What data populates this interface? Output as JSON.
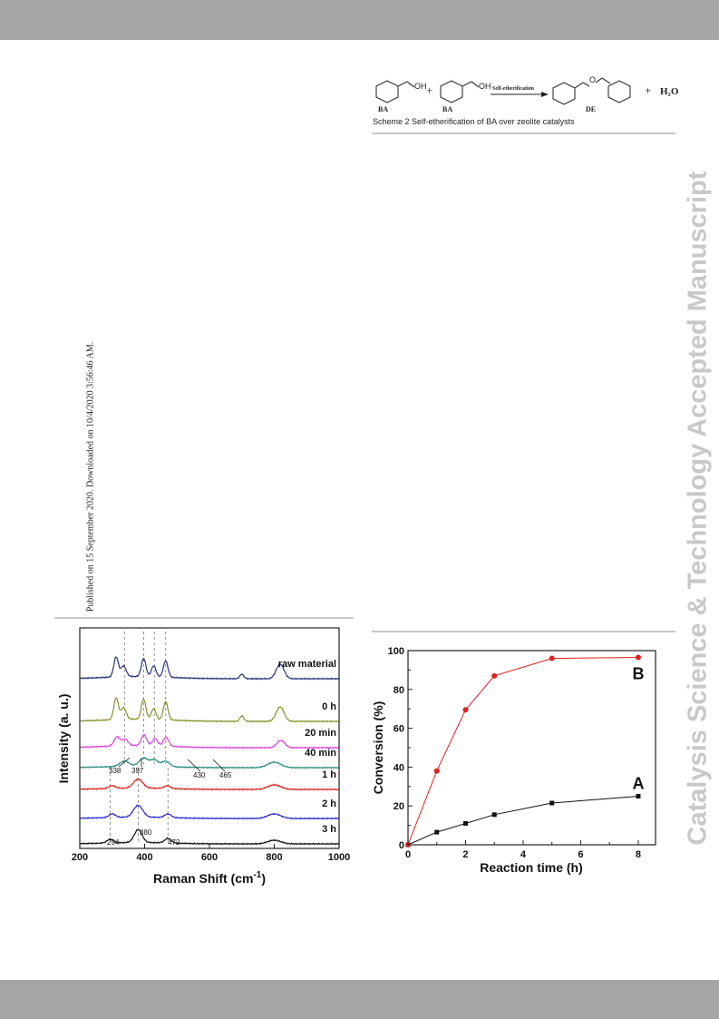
{
  "header": {
    "published": "Published on 15 September 2020. Downloaded on 10/4/2020 3:56:46 AM."
  },
  "watermark": "Catalysis Science & Technology Accepted Manuscript",
  "scheme": {
    "caption": "Scheme 2 Self-etherification of BA over zeolite catalysts",
    "reactant_label": "BA",
    "reactant_oh": "OH",
    "plus": "+",
    "arrow_label": "Self-etherification",
    "product_label": "DE",
    "product_o": "O",
    "water": "H₂O"
  },
  "chart_data": [
    {
      "type": "line",
      "xlabel": "Raman Shift (cm",
      "xlabel_sup": "-1",
      "xlabel_close": ")",
      "ylabel": "Intensity (a. u.)",
      "xlim": [
        200,
        1000
      ],
      "xticks": [
        "200",
        "400",
        "600",
        "800",
        "1000"
      ],
      "series": [
        {
          "name": "raw material",
          "color": "#27327a"
        },
        {
          "name": "0 h",
          "color": "#8a8f2a"
        },
        {
          "name": "20 min",
          "color": "#e040e0"
        },
        {
          "name": "40 min",
          "color": "#2a8a80"
        },
        {
          "name": "1 h",
          "color": "#e02020"
        },
        {
          "name": "2 h",
          "color": "#2a2ad0"
        },
        {
          "name": "3 h",
          "color": "#111111"
        }
      ],
      "peak_markers": [
        338,
        397,
        430,
        465
      ],
      "annotations": [
        "338",
        "397",
        "430",
        "465",
        "294",
        "380",
        "472"
      ]
    },
    {
      "type": "line",
      "xlabel": "Reaction time (h)",
      "ylabel": "Conversion (%)",
      "xlim": [
        0,
        8.6
      ],
      "ylim": [
        0,
        100
      ],
      "xticks": [
        "0",
        "2",
        "4",
        "6",
        "8"
      ],
      "yticks": [
        "0",
        "20",
        "40",
        "60",
        "80",
        "100"
      ],
      "series": [
        {
          "name": "A",
          "color": "#111111",
          "x": [
            0,
            1,
            2,
            3,
            5,
            8
          ],
          "y": [
            0,
            6.5,
            11,
            15.5,
            21.5,
            25
          ]
        },
        {
          "name": "B",
          "color": "#e02020",
          "x": [
            0,
            1,
            2,
            3,
            5,
            8
          ],
          "y": [
            0,
            38,
            69.5,
            87,
            96,
            96.5
          ]
        }
      ]
    }
  ]
}
